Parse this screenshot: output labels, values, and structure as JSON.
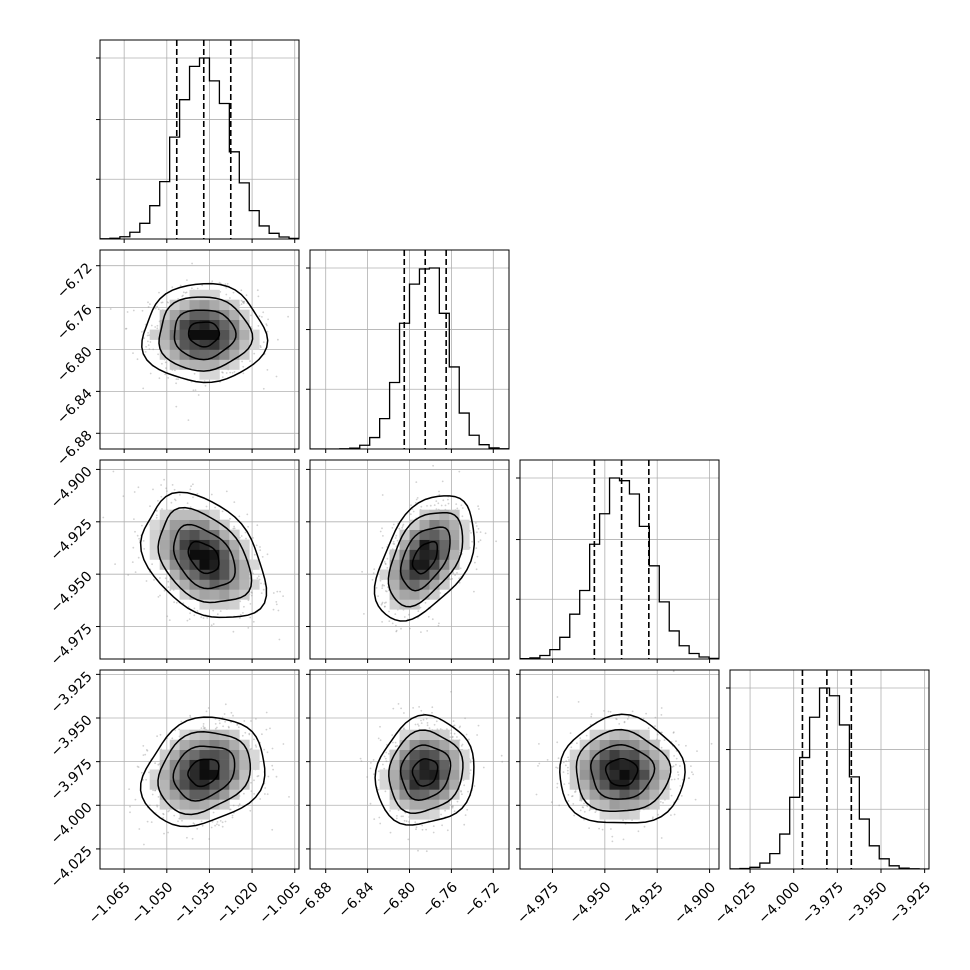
{
  "chart_data": {
    "type": "corner",
    "grid": true,
    "parameters": [
      {
        "id": "p1",
        "center": -1.037,
        "sigma": 0.0094,
        "quantiles": [
          -1.0465,
          -1.037,
          -1.0275
        ],
        "range": [
          -1.0735,
          -1.0035
        ],
        "ticks": [
          -1.065,
          -1.05,
          -1.035,
          -1.02,
          -1.005
        ],
        "tick_labels": [
          "−1.065",
          "−1.050",
          "−1.035",
          "−1.020",
          "−1.005"
        ]
      },
      {
        "id": "p2",
        "center": -6.785,
        "sigma": 0.0205,
        "quantiles": [
          -6.805,
          -6.785,
          -6.765
        ],
        "range": [
          -6.895,
          -6.705
        ],
        "ticks": [
          -6.88,
          -6.84,
          -6.8,
          -6.76,
          -6.72
        ],
        "tick_labels": [
          "−6.88",
          "−6.84",
          "−6.80",
          "−6.76",
          "−6.72"
        ]
      },
      {
        "id": "p3",
        "center": -4.942,
        "sigma": 0.013,
        "quantiles": [
          -4.955,
          -4.942,
          -4.929
        ],
        "range": [
          -4.9905,
          -4.8955
        ],
        "ticks": [
          -4.975,
          -4.95,
          -4.925,
          -4.9
        ],
        "tick_labels": [
          "−4.975",
          "−4.950",
          "−4.925",
          "−4.900"
        ]
      },
      {
        "id": "p4",
        "center": -3.981,
        "sigma": 0.0135,
        "quantiles": [
          -3.995,
          -3.981,
          -3.967
        ],
        "range": [
          -4.0365,
          -3.9225
        ],
        "ticks": [
          -4.025,
          -4.0,
          -3.975,
          -3.95,
          -3.925
        ],
        "tick_labels": [
          "−4.025",
          "−4.000",
          "−3.975",
          "−3.950",
          "−3.925"
        ]
      }
    ],
    "correlations": {
      "p2_p1": 0.0,
      "p3_p1": -0.35,
      "p3_p2": 0.45,
      "p4_p1": 0.2,
      "p4_p2": 0.1,
      "p4_p3": 0.0
    },
    "contour_levels_sigma": [
      0.5,
      1.0,
      1.5,
      2.0
    ]
  }
}
